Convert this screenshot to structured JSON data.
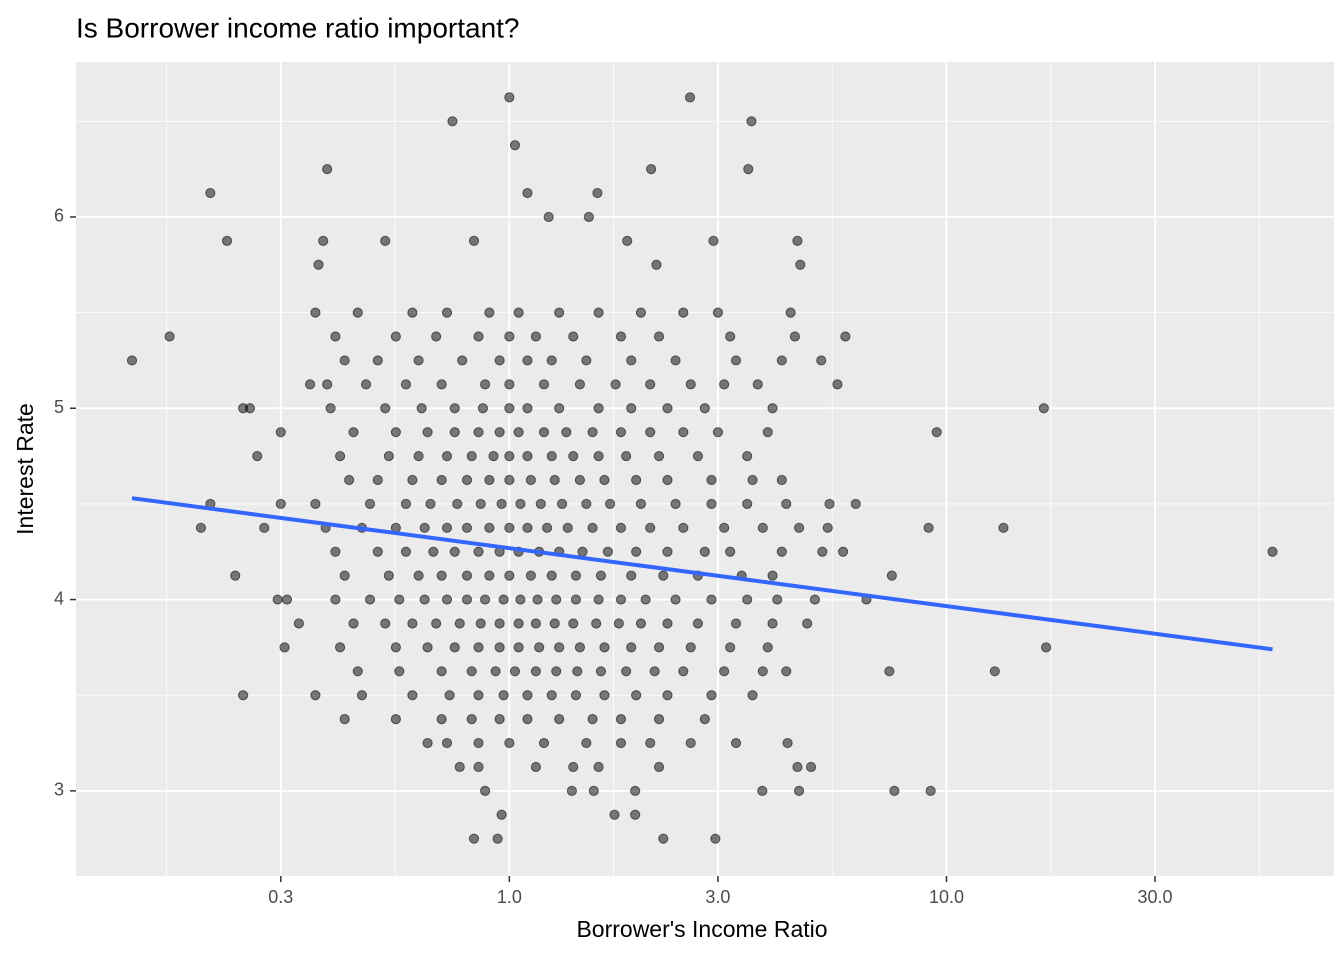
{
  "chart_data": {
    "type": "scatter",
    "title": "Is Borrower income ratio important?",
    "x_label": "Borrower's Income Ratio",
    "y_label": "Interest Rate",
    "xscale": "log",
    "grid": true,
    "xlim": [
      0.102,
      77
    ],
    "ylim": [
      2.555,
      6.81
    ],
    "xticks": [
      0.3,
      {
        "value": 1,
        "label": "1.0"
      },
      {
        "value": 3,
        "label": "3.0"
      },
      {
        "value": 10,
        "label": "10.0"
      },
      {
        "value": 30,
        "label": "30.0"
      }
    ],
    "yticks": [
      3,
      4,
      5,
      6
    ],
    "series": [
      {
        "color": "#000000",
        "x": [
          0.36,
          0.45,
          0.6,
          0.72,
          0.9,
          1.05,
          1.3,
          1.6,
          2.0,
          2.5,
          3.0,
          4.4,
          0.4,
          0.55,
          0.68,
          0.85,
          1.0,
          1.15,
          1.4,
          1.8,
          2.2,
          3.2,
          4.5,
          0.42,
          0.5,
          0.62,
          0.78,
          0.95,
          1.1,
          1.25,
          1.5,
          1.9,
          2.4,
          3.3,
          4.2,
          0.35,
          0.47,
          0.58,
          0.7,
          0.88,
          1.0,
          1.2,
          1.45,
          1.75,
          2.1,
          2.6,
          3.1,
          3.7,
          0.39,
          0.52,
          0.63,
          0.75,
          0.87,
          1.0,
          1.1,
          1.3,
          1.6,
          1.9,
          2.3,
          2.8,
          4.0,
          0.3,
          0.44,
          0.55,
          0.65,
          0.75,
          0.85,
          0.95,
          1.05,
          1.2,
          1.35,
          1.55,
          1.8,
          2.1,
          2.5,
          3.0,
          3.9,
          0.41,
          0.53,
          0.62,
          0.72,
          0.82,
          0.92,
          1.0,
          1.1,
          1.25,
          1.4,
          1.6,
          1.85,
          2.2,
          2.7,
          3.5,
          0.43,
          0.5,
          0.6,
          0.7,
          0.8,
          0.9,
          1.0,
          1.12,
          1.27,
          1.45,
          1.65,
          1.95,
          2.3,
          2.9,
          3.6,
          4.2,
          0.3,
          0.36,
          0.48,
          0.58,
          0.66,
          0.76,
          0.86,
          0.96,
          1.06,
          1.18,
          1.32,
          1.5,
          1.7,
          2.0,
          2.4,
          2.9,
          3.5,
          4.3,
          5.4,
          0.38,
          0.46,
          0.55,
          0.64,
          0.72,
          0.8,
          0.9,
          1.0,
          1.1,
          1.22,
          1.36,
          1.55,
          1.8,
          2.1,
          2.5,
          3.1,
          3.8,
          4.6,
          0.4,
          0.5,
          0.58,
          0.67,
          0.75,
          0.85,
          0.95,
          1.05,
          1.17,
          1.3,
          1.47,
          1.68,
          1.95,
          2.3,
          2.8,
          3.2,
          4.2,
          0.42,
          0.53,
          0.62,
          0.7,
          0.8,
          0.9,
          1.0,
          1.12,
          1.25,
          1.42,
          1.62,
          1.9,
          2.25,
          2.7,
          3.4,
          4.0,
          0.31,
          0.4,
          0.48,
          0.56,
          0.64,
          0.72,
          0.8,
          0.88,
          0.97,
          1.06,
          1.16,
          1.28,
          1.42,
          1.6,
          1.8,
          2.05,
          2.4,
          2.9,
          3.5,
          4.1,
          5.0,
          0.33,
          0.44,
          0.52,
          0.6,
          0.68,
          0.77,
          0.86,
          0.95,
          1.05,
          1.15,
          1.27,
          1.4,
          1.58,
          1.78,
          2.0,
          2.3,
          2.7,
          3.3,
          4.0,
          4.8,
          0.41,
          0.55,
          0.65,
          0.75,
          0.85,
          0.95,
          1.05,
          1.17,
          1.3,
          1.45,
          1.65,
          1.9,
          2.2,
          2.6,
          3.2,
          3.9,
          0.45,
          0.56,
          0.7,
          0.82,
          0.93,
          1.03,
          1.15,
          1.28,
          1.43,
          1.62,
          1.85,
          2.15,
          2.5,
          3.1,
          3.8,
          4.3,
          0.36,
          0.46,
          0.6,
          0.73,
          0.85,
          0.97,
          1.1,
          1.25,
          1.42,
          1.65,
          1.95,
          2.3,
          2.9,
          3.6,
          0.42,
          0.55,
          0.7,
          0.82,
          0.95,
          1.1,
          1.3,
          1.55,
          1.8,
          2.2,
          2.8,
          0.65,
          0.72,
          0.85,
          1.0,
          1.2,
          1.5,
          1.8,
          2.1,
          2.6,
          3.3,
          0.77,
          0.85,
          1.15,
          1.4,
          1.6,
          2.2
        ],
        "values": [
          5.5,
          5.5,
          5.5,
          5.5,
          5.5,
          5.5,
          5.5,
          5.5,
          5.5,
          5.5,
          5.5,
          5.5,
          5.375,
          5.375,
          5.375,
          5.375,
          5.375,
          5.375,
          5.375,
          5.375,
          5.375,
          5.375,
          5.375,
          5.25,
          5.25,
          5.25,
          5.25,
          5.25,
          5.25,
          5.25,
          5.25,
          5.25,
          5.25,
          5.25,
          5.25,
          5.125,
          5.125,
          5.125,
          5.125,
          5.125,
          5.125,
          5.125,
          5.125,
          5.125,
          5.125,
          5.125,
          5.125,
          5.125,
          5,
          5,
          5,
          5,
          5,
          5,
          5,
          5,
          5,
          5,
          5,
          5,
          5,
          4.875,
          4.875,
          4.875,
          4.875,
          4.875,
          4.875,
          4.875,
          4.875,
          4.875,
          4.875,
          4.875,
          4.875,
          4.875,
          4.875,
          4.875,
          4.875,
          4.75,
          4.75,
          4.75,
          4.75,
          4.75,
          4.75,
          4.75,
          4.75,
          4.75,
          4.75,
          4.75,
          4.75,
          4.75,
          4.75,
          4.75,
          4.625,
          4.625,
          4.625,
          4.625,
          4.625,
          4.625,
          4.625,
          4.625,
          4.625,
          4.625,
          4.625,
          4.625,
          4.625,
          4.625,
          4.625,
          4.625,
          4.5,
          4.5,
          4.5,
          4.5,
          4.5,
          4.5,
          4.5,
          4.5,
          4.5,
          4.5,
          4.5,
          4.5,
          4.5,
          4.5,
          4.5,
          4.5,
          4.5,
          4.5,
          4.5,
          4.375,
          4.375,
          4.375,
          4.375,
          4.375,
          4.375,
          4.375,
          4.375,
          4.375,
          4.375,
          4.375,
          4.375,
          4.375,
          4.375,
          4.375,
          4.375,
          4.375,
          4.375,
          4.25,
          4.25,
          4.25,
          4.25,
          4.25,
          4.25,
          4.25,
          4.25,
          4.25,
          4.25,
          4.25,
          4.25,
          4.25,
          4.25,
          4.25,
          4.25,
          4.25,
          4.125,
          4.125,
          4.125,
          4.125,
          4.125,
          4.125,
          4.125,
          4.125,
          4.125,
          4.125,
          4.125,
          4.125,
          4.125,
          4.125,
          4.125,
          4.125,
          4,
          4,
          4,
          4,
          4,
          4,
          4,
          4,
          4,
          4,
          4,
          4,
          4,
          4,
          4,
          4,
          4,
          4,
          4,
          4,
          4,
          3.875,
          3.875,
          3.875,
          3.875,
          3.875,
          3.875,
          3.875,
          3.875,
          3.875,
          3.875,
          3.875,
          3.875,
          3.875,
          3.875,
          3.875,
          3.875,
          3.875,
          3.875,
          3.875,
          3.875,
          3.75,
          3.75,
          3.75,
          3.75,
          3.75,
          3.75,
          3.75,
          3.75,
          3.75,
          3.75,
          3.75,
          3.75,
          3.75,
          3.75,
          3.75,
          3.75,
          3.625,
          3.625,
          3.625,
          3.625,
          3.625,
          3.625,
          3.625,
          3.625,
          3.625,
          3.625,
          3.625,
          3.625,
          3.625,
          3.625,
          3.625,
          3.625,
          3.5,
          3.5,
          3.5,
          3.5,
          3.5,
          3.5,
          3.5,
          3.5,
          3.5,
          3.5,
          3.5,
          3.5,
          3.5,
          3.5,
          3.375,
          3.375,
          3.375,
          3.375,
          3.375,
          3.375,
          3.375,
          3.375,
          3.375,
          3.375,
          3.375,
          3.25,
          3.25,
          3.25,
          3.25,
          3.25,
          3.25,
          3.25,
          3.25,
          3.25,
          3.25,
          3.125,
          3.125,
          3.125,
          3.125,
          3.125,
          3.125
        ]
      },
      {
        "color": "#000000",
        "x": [
          0.137,
          0.167,
          0.207,
          0.226,
          0.383,
          0.741,
          1.0,
          1.03,
          2.11,
          2.59,
          3.58,
          3.52,
          16.7,
          9.5,
          9.1,
          13.5,
          55.7,
          7.5,
          6.56,
          7.4,
          12.9,
          16.9,
          7.6,
          9.2,
          0.246,
          0.197,
          0.207,
          0.236,
          0.246,
          0.255,
          0.265,
          0.275,
          0.295,
          0.306,
          0.83,
          0.94,
          2.96,
          2.25,
          0.96,
          1.74,
          1.94,
          0.88,
          1.39,
          1.56,
          1.94,
          4.56,
          4.9,
          4.6,
          3.79,
          4.33,
          5.2,
          5.8,
          5.35,
          6.2,
          5.63,
          5.87,
          5.17,
          4.56,
          4.63,
          0.383,
          0.366,
          0.375,
          0.52,
          0.83,
          1.23,
          1.52,
          1.59,
          1.1,
          1.86,
          2.93,
          2.17
        ],
        "values": [
          5.25,
          5.375,
          6.125,
          5.875,
          6.25,
          6.5,
          6.625,
          6.375,
          6.25,
          6.625,
          6.5,
          6.25,
          5.0,
          4.875,
          4.375,
          4.375,
          4.25,
          4.125,
          4.0,
          3.625,
          3.625,
          3.75,
          3.0,
          3.0,
          3.5,
          4.375,
          4.5,
          4.125,
          5.0,
          5.0,
          4.75,
          4.375,
          4.0,
          3.75,
          2.75,
          2.75,
          2.75,
          2.75,
          2.875,
          2.875,
          2.875,
          3.0,
          3.0,
          3.0,
          3.0,
          3.125,
          3.125,
          3.0,
          3.0,
          3.25,
          4.25,
          4.25,
          4.375,
          4.5,
          5.125,
          5.375,
          5.25,
          5.875,
          5.75,
          5.125,
          5.75,
          5.875,
          5.875,
          5.875,
          6.0,
          6.0,
          6.125,
          6.125,
          5.875,
          5.875,
          5.75
        ]
      }
    ],
    "trend": {
      "color": "#3366ff",
      "x": [
        0.137,
        55.7
      ],
      "values": [
        4.53,
        3.74
      ]
    }
  }
}
